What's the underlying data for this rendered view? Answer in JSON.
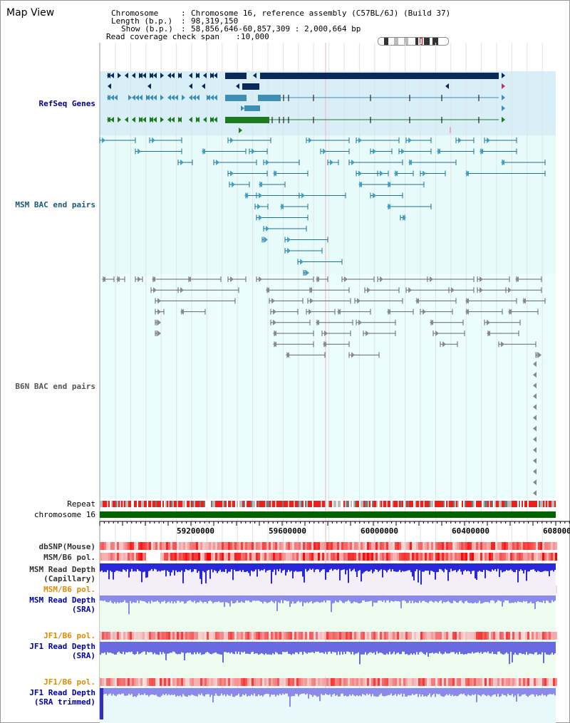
{
  "header": {
    "title": "Map View",
    "chromosome_key": "Chromosome",
    "chromosome_value": "Chromosome 16, reference assembly (C57BL/6J) (Build 37)",
    "length_key": "Length (b.p.)",
    "length_value": "98,319,150",
    "show_key": "Show (b.p.)",
    "show_value": "58,856,646-60,857,309 : 2,000,664 bp",
    "coverage_key": "Read coverage check span",
    "coverage_value": "10,000"
  },
  "tracks": {
    "refseq": "RefSeq Genes",
    "msm_bac": "MSM BAC end pairs",
    "b6n_bac": "B6N BAC end pairs",
    "repeat": "Repeat",
    "chromosome": "chromosome 16",
    "dbsnp": "dbSNP(Mouse)",
    "msm_b6_pol": "MSM/B6 pol.",
    "msm_depth_cap_1": "MSM Read Depth",
    "msm_depth_cap_2": "(Capillary)",
    "msm_b6_pol_2": "MSM/B6 pol.",
    "msm_depth_sra_1": "MSM Read Depth",
    "msm_depth_sra_2": "(SRA)",
    "jf1_b6_pol": "JF1/B6 pol.",
    "jf1_depth_sra_1": "JF1 Read Depth",
    "jf1_depth_sra_2": "(SRA)",
    "jf1_b6_pol_2": "JF1/B6 pol.",
    "jf1_depth_trim_1": "JF1 Read Depth",
    "jf1_depth_trim_2": "(SRA trimmed)"
  },
  "axis": {
    "ticks": [
      "59200000",
      "59600000",
      "60000000",
      "60400000",
      "608000"
    ]
  },
  "colors": {
    "refseq_bg": "#d9eff8",
    "bac_bg": "#e8fbfb",
    "refseq_gene_dark": "#0a2a5c",
    "refseq_gene_mid": "#3f8fb5",
    "refseq_gene_green": "#1e7a1e",
    "msm_label": "#1a5a7a",
    "b6n_label": "#555555",
    "repeat_red": "#e8201e",
    "chromosome_green": "#006400",
    "pol_label": "#e08a00",
    "depth_label": "#0000aa",
    "depth_blue": "#2020e0"
  }
}
